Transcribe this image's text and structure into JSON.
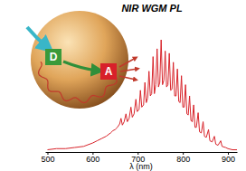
{
  "chart_data": {
    "type": "line",
    "title": "NIR WGM PL",
    "x_label": "λ (nm)",
    "annotations": [
      "D",
      "A"
    ],
    "color": "#d8232a",
    "xlim": [
      495,
      920
    ],
    "xticks": [
      500,
      600,
      700,
      800,
      900
    ],
    "ylim": [
      0,
      1
    ],
    "tick_labels": "x",
    "x": [
      500,
      520,
      540,
      560,
      580,
      600,
      610,
      620,
      630,
      640,
      645,
      650,
      655,
      660,
      663,
      666,
      670,
      674,
      677,
      681,
      685,
      688,
      692,
      696,
      699,
      703,
      706,
      709,
      713,
      716,
      719,
      722,
      725,
      728,
      731,
      734,
      737,
      740,
      743,
      746,
      749,
      752,
      755,
      758,
      761,
      764,
      767,
      770,
      773,
      776,
      779,
      782,
      785,
      788,
      791,
      794,
      797,
      800,
      803,
      806,
      809,
      812,
      815,
      818,
      821,
      824,
      827,
      830,
      834,
      837,
      841,
      845,
      848,
      852,
      857,
      860,
      865,
      870,
      873,
      878,
      884,
      887,
      895,
      900,
      910,
      920
    ],
    "values": [
      0.02,
      0.03,
      0.03,
      0.04,
      0.05,
      0.08,
      0.1,
      0.12,
      0.14,
      0.17,
      0.19,
      0.2,
      0.22,
      0.25,
      0.3,
      0.24,
      0.27,
      0.34,
      0.27,
      0.3,
      0.4,
      0.31,
      0.34,
      0.47,
      0.36,
      0.38,
      0.55,
      0.4,
      0.42,
      0.62,
      0.44,
      0.48,
      0.72,
      0.5,
      0.52,
      0.85,
      0.52,
      0.6,
      0.92,
      0.58,
      0.62,
      1.0,
      0.6,
      0.64,
      0.9,
      0.58,
      0.6,
      0.88,
      0.55,
      0.56,
      0.8,
      0.5,
      0.5,
      0.74,
      0.45,
      0.44,
      0.68,
      0.4,
      0.4,
      0.6,
      0.34,
      0.33,
      0.5,
      0.28,
      0.27,
      0.42,
      0.22,
      0.22,
      0.35,
      0.18,
      0.17,
      0.27,
      0.14,
      0.13,
      0.2,
      0.1,
      0.09,
      0.14,
      0.07,
      0.06,
      0.1,
      0.05,
      0.04,
      0.03,
      0.02,
      0.02
    ]
  }
}
